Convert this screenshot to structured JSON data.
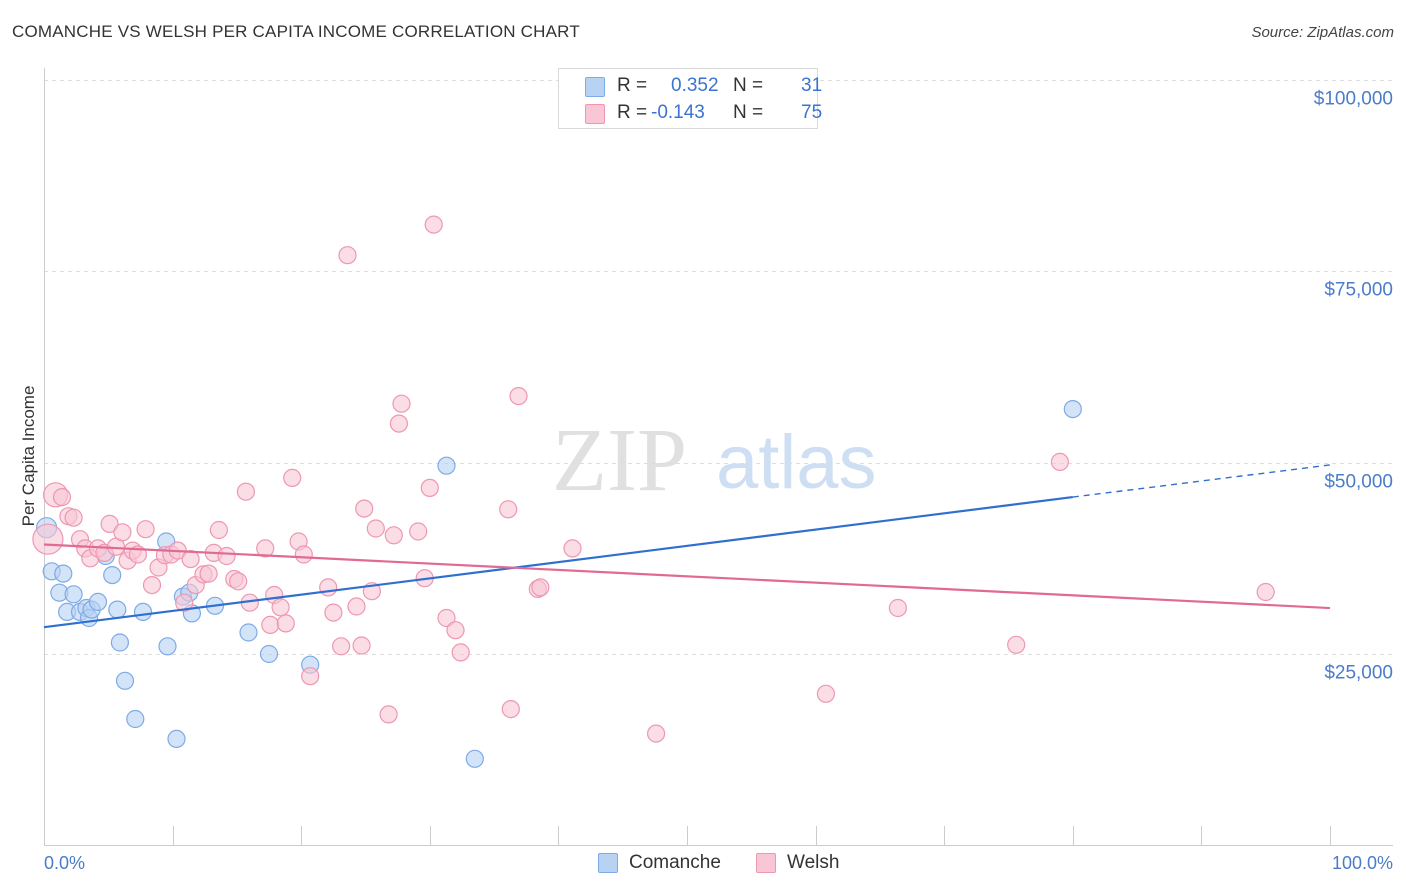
{
  "header": {
    "title": "COMANCHE VS WELSH PER CAPITA INCOME CORRELATION CHART",
    "source": "Source: ZipAtlas.com"
  },
  "watermark": {
    "zip": "ZIP",
    "atlas": "atlas"
  },
  "legend": {
    "rows": [
      {
        "r_label": "R =",
        "r_value": "0.352",
        "n_label": "N =",
        "n_value": "31"
      },
      {
        "r_label": "R =",
        "r_value": "-0.143",
        "n_label": "N =",
        "n_value": "75"
      }
    ]
  },
  "colors": {
    "comanche_fill": "#b8d2f3",
    "comanche_stroke": "#7eaae6",
    "comanche_line": "#2f6fcf",
    "welsh_fill": "#f9c6d5",
    "welsh_stroke": "#ee97b2",
    "welsh_line": "#e06a93",
    "tick_text": "#4a7cc9",
    "grid": "#dddddd"
  },
  "chart_data": {
    "type": "scatter",
    "title": "COMANCHE VS WELSH PER CAPITA INCOME CORRELATION CHART",
    "xlabel": "",
    "ylabel": "Per Capita Income",
    "xlim": [
      0,
      100
    ],
    "ylim": [
      0,
      100000
    ],
    "x_tick_labels": [
      "0.0%",
      "100.0%"
    ],
    "y_ticks": [
      25000,
      50000,
      75000,
      100000
    ],
    "y_tick_labels": [
      "$25,000",
      "$50,000",
      "$75,000",
      "$100,000"
    ],
    "series": [
      {
        "name": "Comanche",
        "r": 0.352,
        "n": 31,
        "trend": {
          "x0": 0,
          "y0": 28500,
          "x1": 80,
          "y1": 45500,
          "dashed_to_x": 100,
          "dashed_to_y": 49700
        },
        "points": [
          {
            "x": 0.2,
            "y": 41500
          },
          {
            "x": 0.6,
            "y": 35800
          },
          {
            "x": 1.2,
            "y": 33000
          },
          {
            "x": 1.5,
            "y": 35500
          },
          {
            "x": 1.8,
            "y": 30500
          },
          {
            "x": 2.3,
            "y": 32800
          },
          {
            "x": 2.8,
            "y": 30500
          },
          {
            "x": 3.3,
            "y": 31000
          },
          {
            "x": 3.5,
            "y": 29700
          },
          {
            "x": 3.7,
            "y": 30800
          },
          {
            "x": 4.2,
            "y": 31800
          },
          {
            "x": 4.8,
            "y": 37800
          },
          {
            "x": 5.3,
            "y": 35300
          },
          {
            "x": 5.7,
            "y": 30800
          },
          {
            "x": 5.9,
            "y": 26500
          },
          {
            "x": 6.3,
            "y": 21500
          },
          {
            "x": 7.1,
            "y": 16500
          },
          {
            "x": 7.7,
            "y": 30500
          },
          {
            "x": 9.6,
            "y": 26000
          },
          {
            "x": 9.5,
            "y": 39700
          },
          {
            "x": 10.3,
            "y": 13900
          },
          {
            "x": 10.8,
            "y": 32500
          },
          {
            "x": 11.3,
            "y": 33000
          },
          {
            "x": 11.5,
            "y": 30300
          },
          {
            "x": 13.3,
            "y": 31300
          },
          {
            "x": 15.9,
            "y": 27800
          },
          {
            "x": 17.5,
            "y": 25000
          },
          {
            "x": 20.7,
            "y": 23600
          },
          {
            "x": 31.3,
            "y": 49600
          },
          {
            "x": 33.5,
            "y": 11300
          },
          {
            "x": 80.0,
            "y": 57000
          }
        ]
      },
      {
        "name": "Welsh",
        "r": -0.143,
        "n": 75,
        "trend": {
          "x0": 0,
          "y0": 39300,
          "x1": 100,
          "y1": 31000
        },
        "points": [
          {
            "x": 0.3,
            "y": 40000
          },
          {
            "x": 0.9,
            "y": 45800
          },
          {
            "x": 1.4,
            "y": 45500
          },
          {
            "x": 1.9,
            "y": 43000
          },
          {
            "x": 2.3,
            "y": 42800
          },
          {
            "x": 2.8,
            "y": 40000
          },
          {
            "x": 3.2,
            "y": 38800
          },
          {
            "x": 3.6,
            "y": 37500
          },
          {
            "x": 4.2,
            "y": 38800
          },
          {
            "x": 4.7,
            "y": 38200
          },
          {
            "x": 5.1,
            "y": 42000
          },
          {
            "x": 5.6,
            "y": 39000
          },
          {
            "x": 6.1,
            "y": 40900
          },
          {
            "x": 6.5,
            "y": 37200
          },
          {
            "x": 6.9,
            "y": 38500
          },
          {
            "x": 7.3,
            "y": 38000
          },
          {
            "x": 7.9,
            "y": 41300
          },
          {
            "x": 8.4,
            "y": 34000
          },
          {
            "x": 8.9,
            "y": 36300
          },
          {
            "x": 9.4,
            "y": 37900
          },
          {
            "x": 9.9,
            "y": 38000
          },
          {
            "x": 10.4,
            "y": 38500
          },
          {
            "x": 10.9,
            "y": 31700
          },
          {
            "x": 11.4,
            "y": 37400
          },
          {
            "x": 11.8,
            "y": 34000
          },
          {
            "x": 12.4,
            "y": 35400
          },
          {
            "x": 12.8,
            "y": 35500
          },
          {
            "x": 13.2,
            "y": 38200
          },
          {
            "x": 13.6,
            "y": 41200
          },
          {
            "x": 14.2,
            "y": 37800
          },
          {
            "x": 14.8,
            "y": 34800
          },
          {
            "x": 15.1,
            "y": 34500
          },
          {
            "x": 15.7,
            "y": 46200
          },
          {
            "x": 16.0,
            "y": 31700
          },
          {
            "x": 17.2,
            "y": 38800
          },
          {
            "x": 17.6,
            "y": 28800
          },
          {
            "x": 17.9,
            "y": 32700
          },
          {
            "x": 18.4,
            "y": 31100
          },
          {
            "x": 18.8,
            "y": 29000
          },
          {
            "x": 19.3,
            "y": 48000
          },
          {
            "x": 19.8,
            "y": 39700
          },
          {
            "x": 20.2,
            "y": 38000
          },
          {
            "x": 20.7,
            "y": 22100
          },
          {
            "x": 22.1,
            "y": 33700
          },
          {
            "x": 22.5,
            "y": 30400
          },
          {
            "x": 23.1,
            "y": 26000
          },
          {
            "x": 23.6,
            "y": 77100
          },
          {
            "x": 24.3,
            "y": 31200
          },
          {
            "x": 24.7,
            "y": 26100
          },
          {
            "x": 24.9,
            "y": 44000
          },
          {
            "x": 25.5,
            "y": 33200
          },
          {
            "x": 25.8,
            "y": 41400
          },
          {
            "x": 26.8,
            "y": 17100
          },
          {
            "x": 27.2,
            "y": 40500
          },
          {
            "x": 27.6,
            "y": 55100
          },
          {
            "x": 27.8,
            "y": 57700
          },
          {
            "x": 29.1,
            "y": 41000
          },
          {
            "x": 29.6,
            "y": 34900
          },
          {
            "x": 30.0,
            "y": 46700
          },
          {
            "x": 30.3,
            "y": 81100
          },
          {
            "x": 31.3,
            "y": 29700
          },
          {
            "x": 32.0,
            "y": 28100
          },
          {
            "x": 32.4,
            "y": 25200
          },
          {
            "x": 36.1,
            "y": 43900
          },
          {
            "x": 36.3,
            "y": 17800
          },
          {
            "x": 36.9,
            "y": 58700
          },
          {
            "x": 38.4,
            "y": 33500
          },
          {
            "x": 38.6,
            "y": 33700
          },
          {
            "x": 41.1,
            "y": 38800
          },
          {
            "x": 47.6,
            "y": 14600
          },
          {
            "x": 60.8,
            "y": 19800
          },
          {
            "x": 66.4,
            "y": 31000
          },
          {
            "x": 75.6,
            "y": 26200
          },
          {
            "x": 79.0,
            "y": 50100
          },
          {
            "x": 95.0,
            "y": 33100
          }
        ]
      }
    ]
  }
}
